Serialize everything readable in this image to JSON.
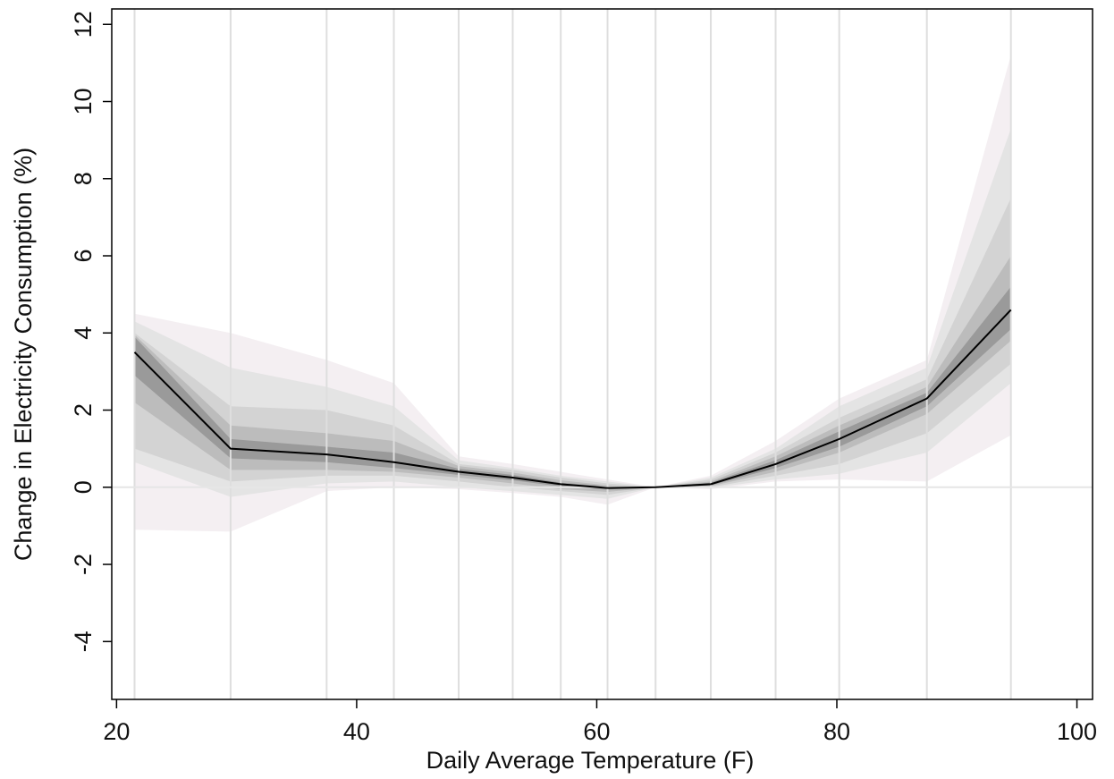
{
  "chart_data": {
    "type": "line",
    "xlabel": "Daily Average Temperature (F)",
    "ylabel": "Change in  Electricity Consumption (%)",
    "x": [
      21.5,
      29.5,
      37.5,
      43.1,
      48.5,
      53.0,
      57.0,
      60.9,
      64.9,
      69.5,
      74.9,
      80.2,
      87.5,
      94.5
    ],
    "bands": [
      {
        "color": "#f4eff2",
        "upper": [
          4.5,
          4.0,
          3.3,
          2.7,
          0.8,
          0.6,
          0.4,
          0.2,
          0,
          0.3,
          1.2,
          2.3,
          3.3,
          11.2
        ],
        "lower": [
          -1.1,
          -1.15,
          -0.1,
          0.0,
          -0.05,
          -0.15,
          -0.25,
          -0.45,
          0,
          -0.05,
          0.15,
          0.2,
          0.15,
          1.35
        ]
      },
      {
        "color": "#e4e4e4",
        "upper": [
          4.3,
          3.1,
          2.6,
          2.1,
          0.7,
          0.5,
          0.3,
          0.15,
          0,
          0.25,
          1.0,
          2.1,
          3.1,
          9.3
        ],
        "lower": [
          0.65,
          -0.25,
          0.1,
          0.15,
          0.0,
          -0.1,
          -0.2,
          -0.3,
          0,
          -0.02,
          0.2,
          0.35,
          0.9,
          2.7
        ]
      },
      {
        "color": "#d3d3d3",
        "upper": [
          4.0,
          2.1,
          2.0,
          1.6,
          0.6,
          0.45,
          0.25,
          0.1,
          0,
          0.2,
          0.9,
          1.8,
          2.8,
          7.5
        ],
        "lower": [
          1.0,
          0.15,
          0.3,
          0.3,
          0.15,
          0.0,
          -0.1,
          -0.2,
          0,
          0.0,
          0.3,
          0.6,
          1.4,
          3.2
        ]
      },
      {
        "color": "#bcbcbc",
        "upper": [
          3.95,
          1.6,
          1.4,
          1.2,
          0.55,
          0.38,
          0.18,
          0.05,
          0,
          0.15,
          0.8,
          1.6,
          2.6,
          6.0
        ],
        "lower": [
          2.2,
          0.45,
          0.45,
          0.4,
          0.25,
          0.1,
          -0.05,
          -0.12,
          0,
          0.03,
          0.4,
          0.9,
          1.9,
          3.8
        ]
      },
      {
        "color": "#9a9a9a",
        "upper": [
          3.9,
          1.25,
          1.05,
          0.9,
          0.48,
          0.32,
          0.12,
          0.02,
          0,
          0.12,
          0.7,
          1.45,
          2.45,
          5.2
        ],
        "lower": [
          2.9,
          0.75,
          0.65,
          0.5,
          0.32,
          0.18,
          0.02,
          -0.06,
          0,
          0.05,
          0.5,
          1.05,
          2.1,
          4.1
        ]
      }
    ],
    "series": [
      {
        "color": "#000000",
        "values": [
          3.5,
          1.0,
          0.85,
          0.65,
          0.4,
          0.25,
          0.08,
          -0.02,
          0,
          0.08,
          0.6,
          1.25,
          2.3,
          4.6
        ]
      }
    ],
    "xlim": [
      19.6,
      101.3
    ],
    "xticks": [
      20,
      40,
      60,
      80,
      100
    ],
    "ylim": [
      -5.5,
      12.4
    ],
    "yticks": [
      -4,
      -2,
      0,
      2,
      4,
      6,
      8,
      10,
      12
    ],
    "hline": 0,
    "vgrid": true
  }
}
